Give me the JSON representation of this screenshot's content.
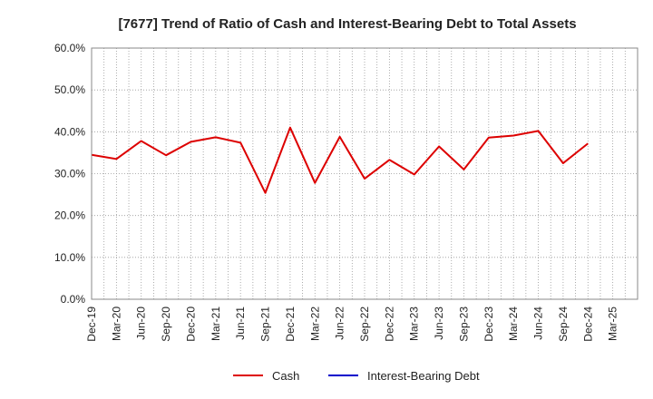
{
  "chart_data": {
    "type": "line",
    "title": "[7677]  Trend of Ratio of Cash and Interest-Bearing Debt to Total Assets",
    "xlabel": "",
    "ylabel": "",
    "ylim": [
      0,
      60
    ],
    "y_ticks": [
      "0.0%",
      "10.0%",
      "20.0%",
      "30.0%",
      "40.0%",
      "50.0%",
      "60.0%"
    ],
    "y_tick_values": [
      0,
      10,
      20,
      30,
      40,
      50,
      60
    ],
    "x": [
      "Dec-19",
      "Mar-20",
      "Jun-20",
      "Sep-20",
      "Dec-20",
      "Mar-21",
      "Jun-21",
      "Sep-21",
      "Dec-21",
      "Mar-22",
      "Jun-22",
      "Sep-22",
      "Dec-22",
      "Mar-23",
      "Jun-23",
      "Sep-23",
      "Dec-23",
      "Mar-24",
      "Jun-24",
      "Sep-24",
      "Dec-24",
      "Mar-25"
    ],
    "grid": true,
    "legend_position": "bottom",
    "series": [
      {
        "name": "Cash",
        "color": "#dd0000",
        "values": [
          34.5,
          33.5,
          37.8,
          34.4,
          37.6,
          38.7,
          37.4,
          25.4,
          41.0,
          27.8,
          38.8,
          28.8,
          33.3,
          29.8,
          36.5,
          31.0,
          38.6,
          39.1,
          40.2,
          32.5,
          37.2,
          null
        ]
      },
      {
        "name": "Interest-Bearing Debt",
        "color": "#0000cc",
        "values": [
          null,
          null,
          null,
          null,
          null,
          null,
          null,
          null,
          null,
          null,
          null,
          null,
          null,
          null,
          null,
          null,
          null,
          null,
          null,
          null,
          null,
          null
        ]
      }
    ]
  }
}
